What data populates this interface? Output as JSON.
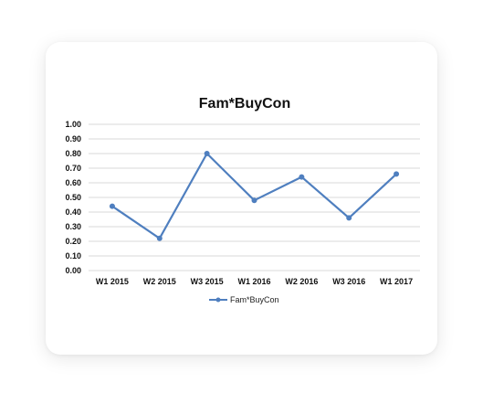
{
  "chart_data": {
    "type": "line",
    "title": "Fam*BuyCon",
    "categories": [
      "W1 2015",
      "W2 2015",
      "W3 2015",
      "W1 2016",
      "W2 2016",
      "W3 2016",
      "W1 2017"
    ],
    "series": [
      {
        "name": "Fam*BuyCon",
        "values": [
          0.44,
          0.22,
          0.8,
          0.48,
          0.64,
          0.36,
          0.66
        ],
        "color": "#4f7fbf"
      }
    ],
    "ylim": [
      0,
      1
    ],
    "yticks": [
      "0.00",
      "0.10",
      "0.20",
      "0.30",
      "0.40",
      "0.50",
      "0.60",
      "0.70",
      "0.80",
      "0.90",
      "1.00"
    ],
    "grid": true,
    "legend_position": "bottom",
    "markers": true
  }
}
